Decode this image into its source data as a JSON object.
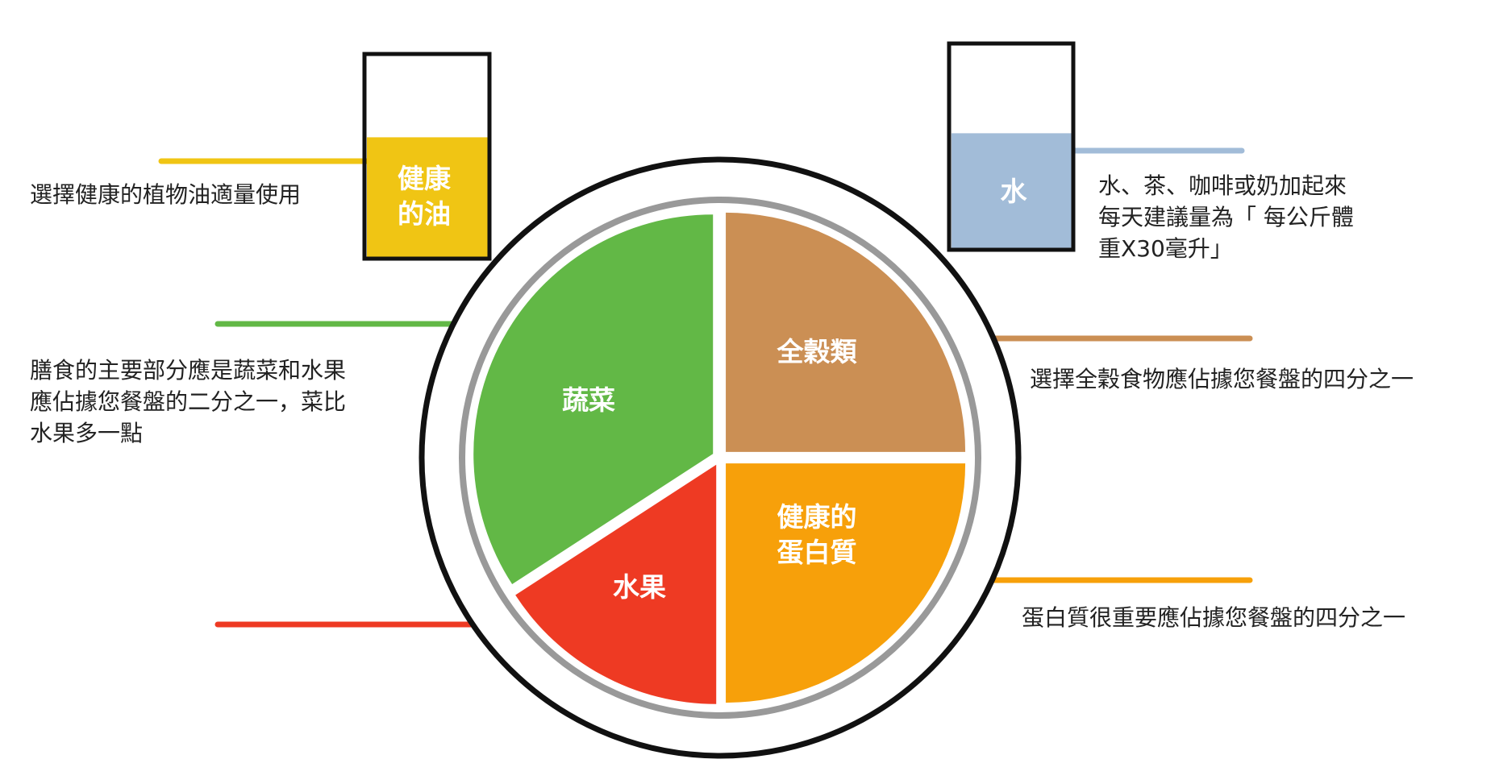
{
  "colors": {
    "vegetables": "#62b846",
    "fruits": "#ee3a23",
    "grains": "#cb8f54",
    "protein": "#f7a00a",
    "oil": "#f0c514",
    "water": "#a2bcd8",
    "plate_outline": "#111111",
    "plate_ring": "#999999"
  },
  "plate": {
    "sections": [
      {
        "key": "vegetables",
        "label": "蔬菜"
      },
      {
        "key": "fruits",
        "label": "水果"
      },
      {
        "key": "grains",
        "label": "全穀類"
      },
      {
        "key": "protein",
        "label_lines": [
          "健康的",
          "蛋白質"
        ]
      }
    ]
  },
  "oil": {
    "label_lines": [
      "健康",
      "的油"
    ],
    "fill_level": 0.6,
    "note": "選擇健康的植物油適量使用"
  },
  "water": {
    "label": "水",
    "fill_level": 0.57,
    "note_lines": [
      "水、茶、咖啡或奶加起來",
      "每天建議量為「 每公斤體",
      "重X30毫升」"
    ]
  },
  "notes": {
    "vegetables_lines": [
      "膳食的主要部分應是蔬菜和水果",
      "應佔據您餐盤的二分之一，菜比",
      "水果多一點"
    ],
    "grains": "選擇全穀食物應佔據您餐盤的四分之一",
    "protein": "蛋白質很重要應佔據您餐盤的四分之一"
  }
}
